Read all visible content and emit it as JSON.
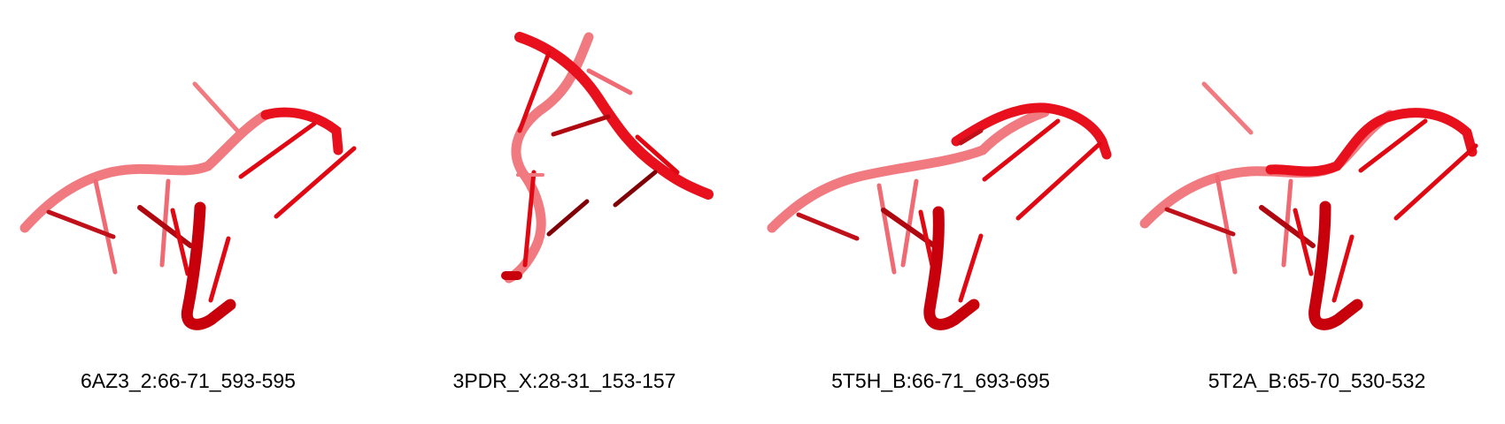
{
  "panels": [
    {
      "label": "6AZ3_2:66-71_593-595"
    },
    {
      "label": "3PDR_X:28-31_153-157"
    },
    {
      "label": "5T5H_B:66-71_693-695"
    },
    {
      "label": "5T2A_B:65-70_530-532"
    }
  ],
  "colors": {
    "backbone_faded": "#f07a80",
    "backbone_main": "#e8101c",
    "backbone_dark": "#7a0006",
    "base_faded": "#ef6a72",
    "base_main": "#e00812",
    "base_dark": "#800008"
  }
}
